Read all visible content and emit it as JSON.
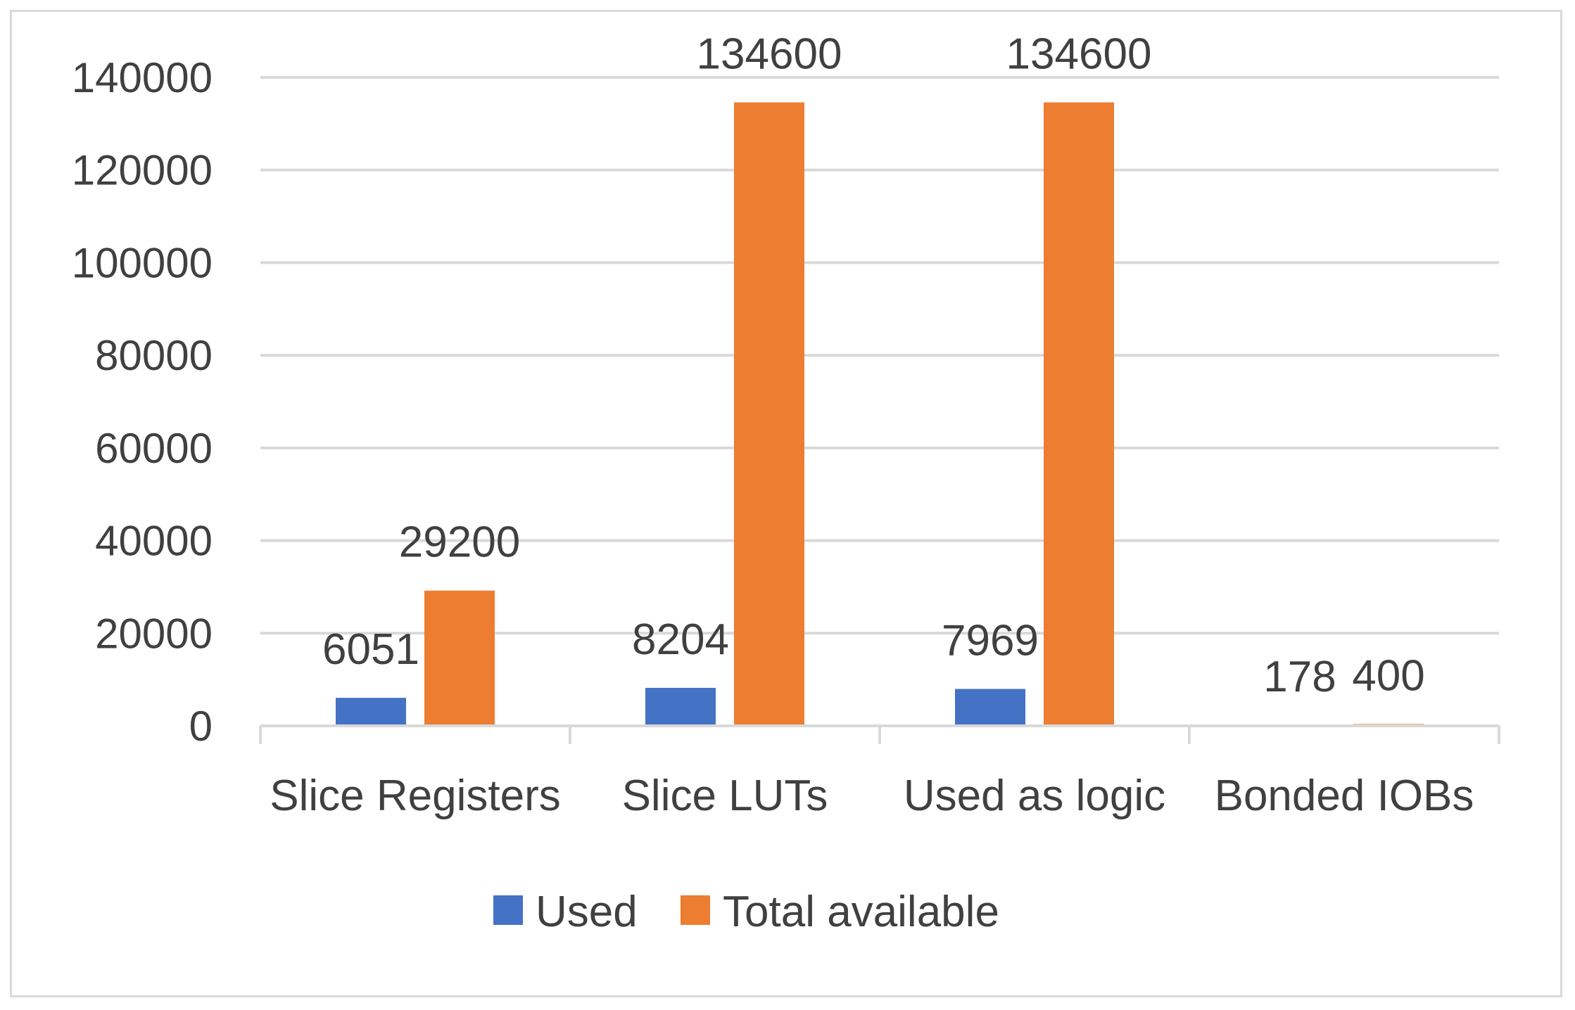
{
  "chart_data": {
    "type": "bar",
    "title": "",
    "xlabel": "",
    "ylabel": "",
    "categories": [
      "Slice Registers",
      "Slice LUTs",
      "Used as logic",
      "Bonded IOBs"
    ],
    "series": [
      {
        "name": "Used",
        "values": [
          6051,
          8204,
          7969,
          178
        ],
        "color": "#4472c4"
      },
      {
        "name": "Total available",
        "values": [
          29200,
          134600,
          134600,
          400
        ],
        "color": "#ed7d31"
      }
    ],
    "ylim": [
      0,
      140000
    ],
    "yticks": [
      0,
      20000,
      40000,
      60000,
      80000,
      100000,
      120000,
      140000
    ],
    "grid": true,
    "gridline_color": "#d9d9d9",
    "legend_position": "bottom",
    "data_labels": true
  }
}
